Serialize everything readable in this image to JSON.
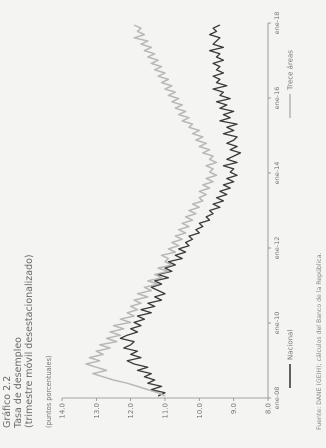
{
  "title_lines": [
    "Gráfico 2.2",
    "Tasa de desempleo",
    "(trimestre móvil desestacionalizado)"
  ],
  "unit_label": "(puntos porcentuales)",
  "source": "Fuente: DANE (GEIH); cálculos del Banco de la República.",
  "chart_data": {
    "type": "line",
    "ylim": [
      8.0,
      14.0
    ],
    "yticks": [
      "14.0",
      "13.0",
      "12.0",
      "11.0",
      "10.0",
      "9.0",
      "8.0"
    ],
    "xticks": [
      "ene-08",
      "ene-10",
      "ene-12",
      "ene-14",
      "ene-16",
      "ene-18"
    ],
    "x_start": "2008-01",
    "x_end": "2018-01",
    "series": [
      {
        "name": "Nacional",
        "color": "#3a3a3a",
        "values": [
          11.2,
          11.0,
          11.4,
          11.1,
          11.5,
          11.3,
          11.6,
          11.4,
          11.8,
          11.5,
          11.9,
          12.1,
          11.7,
          12.0,
          11.8,
          12.2,
          12.0,
          11.9,
          12.3,
          12.1,
          11.8,
          12.0,
          11.7,
          11.9,
          11.6,
          11.8,
          11.4,
          11.7,
          11.3,
          11.5,
          11.1,
          11.3,
          11.0,
          11.2,
          11.4,
          11.1,
          11.3,
          10.9,
          11.2,
          10.8,
          11.0,
          10.7,
          10.9,
          10.5,
          10.7,
          10.4,
          10.6,
          10.3,
          10.4,
          10.2,
          10.3,
          10.0,
          10.1,
          9.9,
          10.0,
          9.7,
          9.8,
          9.6,
          9.7,
          9.4,
          9.6,
          9.3,
          9.5,
          9.2,
          9.4,
          9.1,
          9.3,
          9.0,
          9.2,
          8.9,
          9.1,
          9.0,
          9.3,
          8.9,
          9.2,
          9.0,
          8.8,
          9.1,
          8.9,
          9.2,
          9.0,
          8.9,
          9.3,
          9.0,
          9.2,
          8.9,
          9.4,
          9.1,
          9.3,
          9.0,
          9.4,
          9.2,
          9.5,
          9.1,
          9.4,
          9.3,
          9.6,
          9.2,
          9.5,
          9.4,
          9.6,
          9.3,
          9.5,
          9.4,
          9.6,
          9.3,
          9.5,
          9.4,
          9.7,
          9.3,
          9.6,
          9.5,
          9.4,
          9.7,
          9.5,
          9.6,
          9.4
        ]
      },
      {
        "name": "Trece áreas",
        "color": "#b8b8b8",
        "values": [
          11.0,
          11.2,
          11.5,
          11.8,
          12.1,
          12.5,
          12.8,
          13.1,
          12.7,
          13.0,
          13.3,
          12.9,
          13.2,
          12.8,
          13.0,
          12.6,
          12.9,
          12.4,
          12.7,
          12.3,
          12.6,
          12.2,
          12.5,
          12.0,
          12.3,
          11.9,
          12.1,
          11.8,
          12.0,
          11.7,
          11.9,
          11.5,
          11.8,
          11.4,
          11.6,
          11.2,
          11.5,
          11.1,
          11.3,
          10.9,
          11.2,
          10.8,
          11.0,
          10.9,
          11.1,
          10.7,
          10.9,
          10.6,
          10.8,
          10.5,
          10.7,
          10.4,
          10.6,
          10.3,
          10.5,
          10.2,
          10.4,
          10.1,
          10.3,
          10.0,
          10.2,
          9.9,
          10.0,
          9.8,
          10.0,
          9.7,
          9.9,
          9.6,
          9.8,
          9.5,
          9.7,
          9.6,
          9.8,
          9.5,
          9.7,
          9.6,
          9.9,
          9.7,
          10.0,
          9.8,
          10.1,
          9.9,
          10.2,
          10.0,
          10.3,
          10.2,
          10.5,
          10.3,
          10.6,
          10.4,
          10.7,
          10.5,
          10.8,
          10.6,
          10.9,
          10.7,
          11.0,
          10.8,
          11.1,
          10.9,
          11.2,
          11.0,
          11.3,
          11.1,
          11.4,
          11.2,
          11.5,
          11.3,
          11.6,
          11.4,
          11.7,
          11.5,
          11.9,
          11.6,
          11.8,
          11.7,
          11.9
        ]
      }
    ],
    "legend_position": "bottom",
    "grid": false
  }
}
